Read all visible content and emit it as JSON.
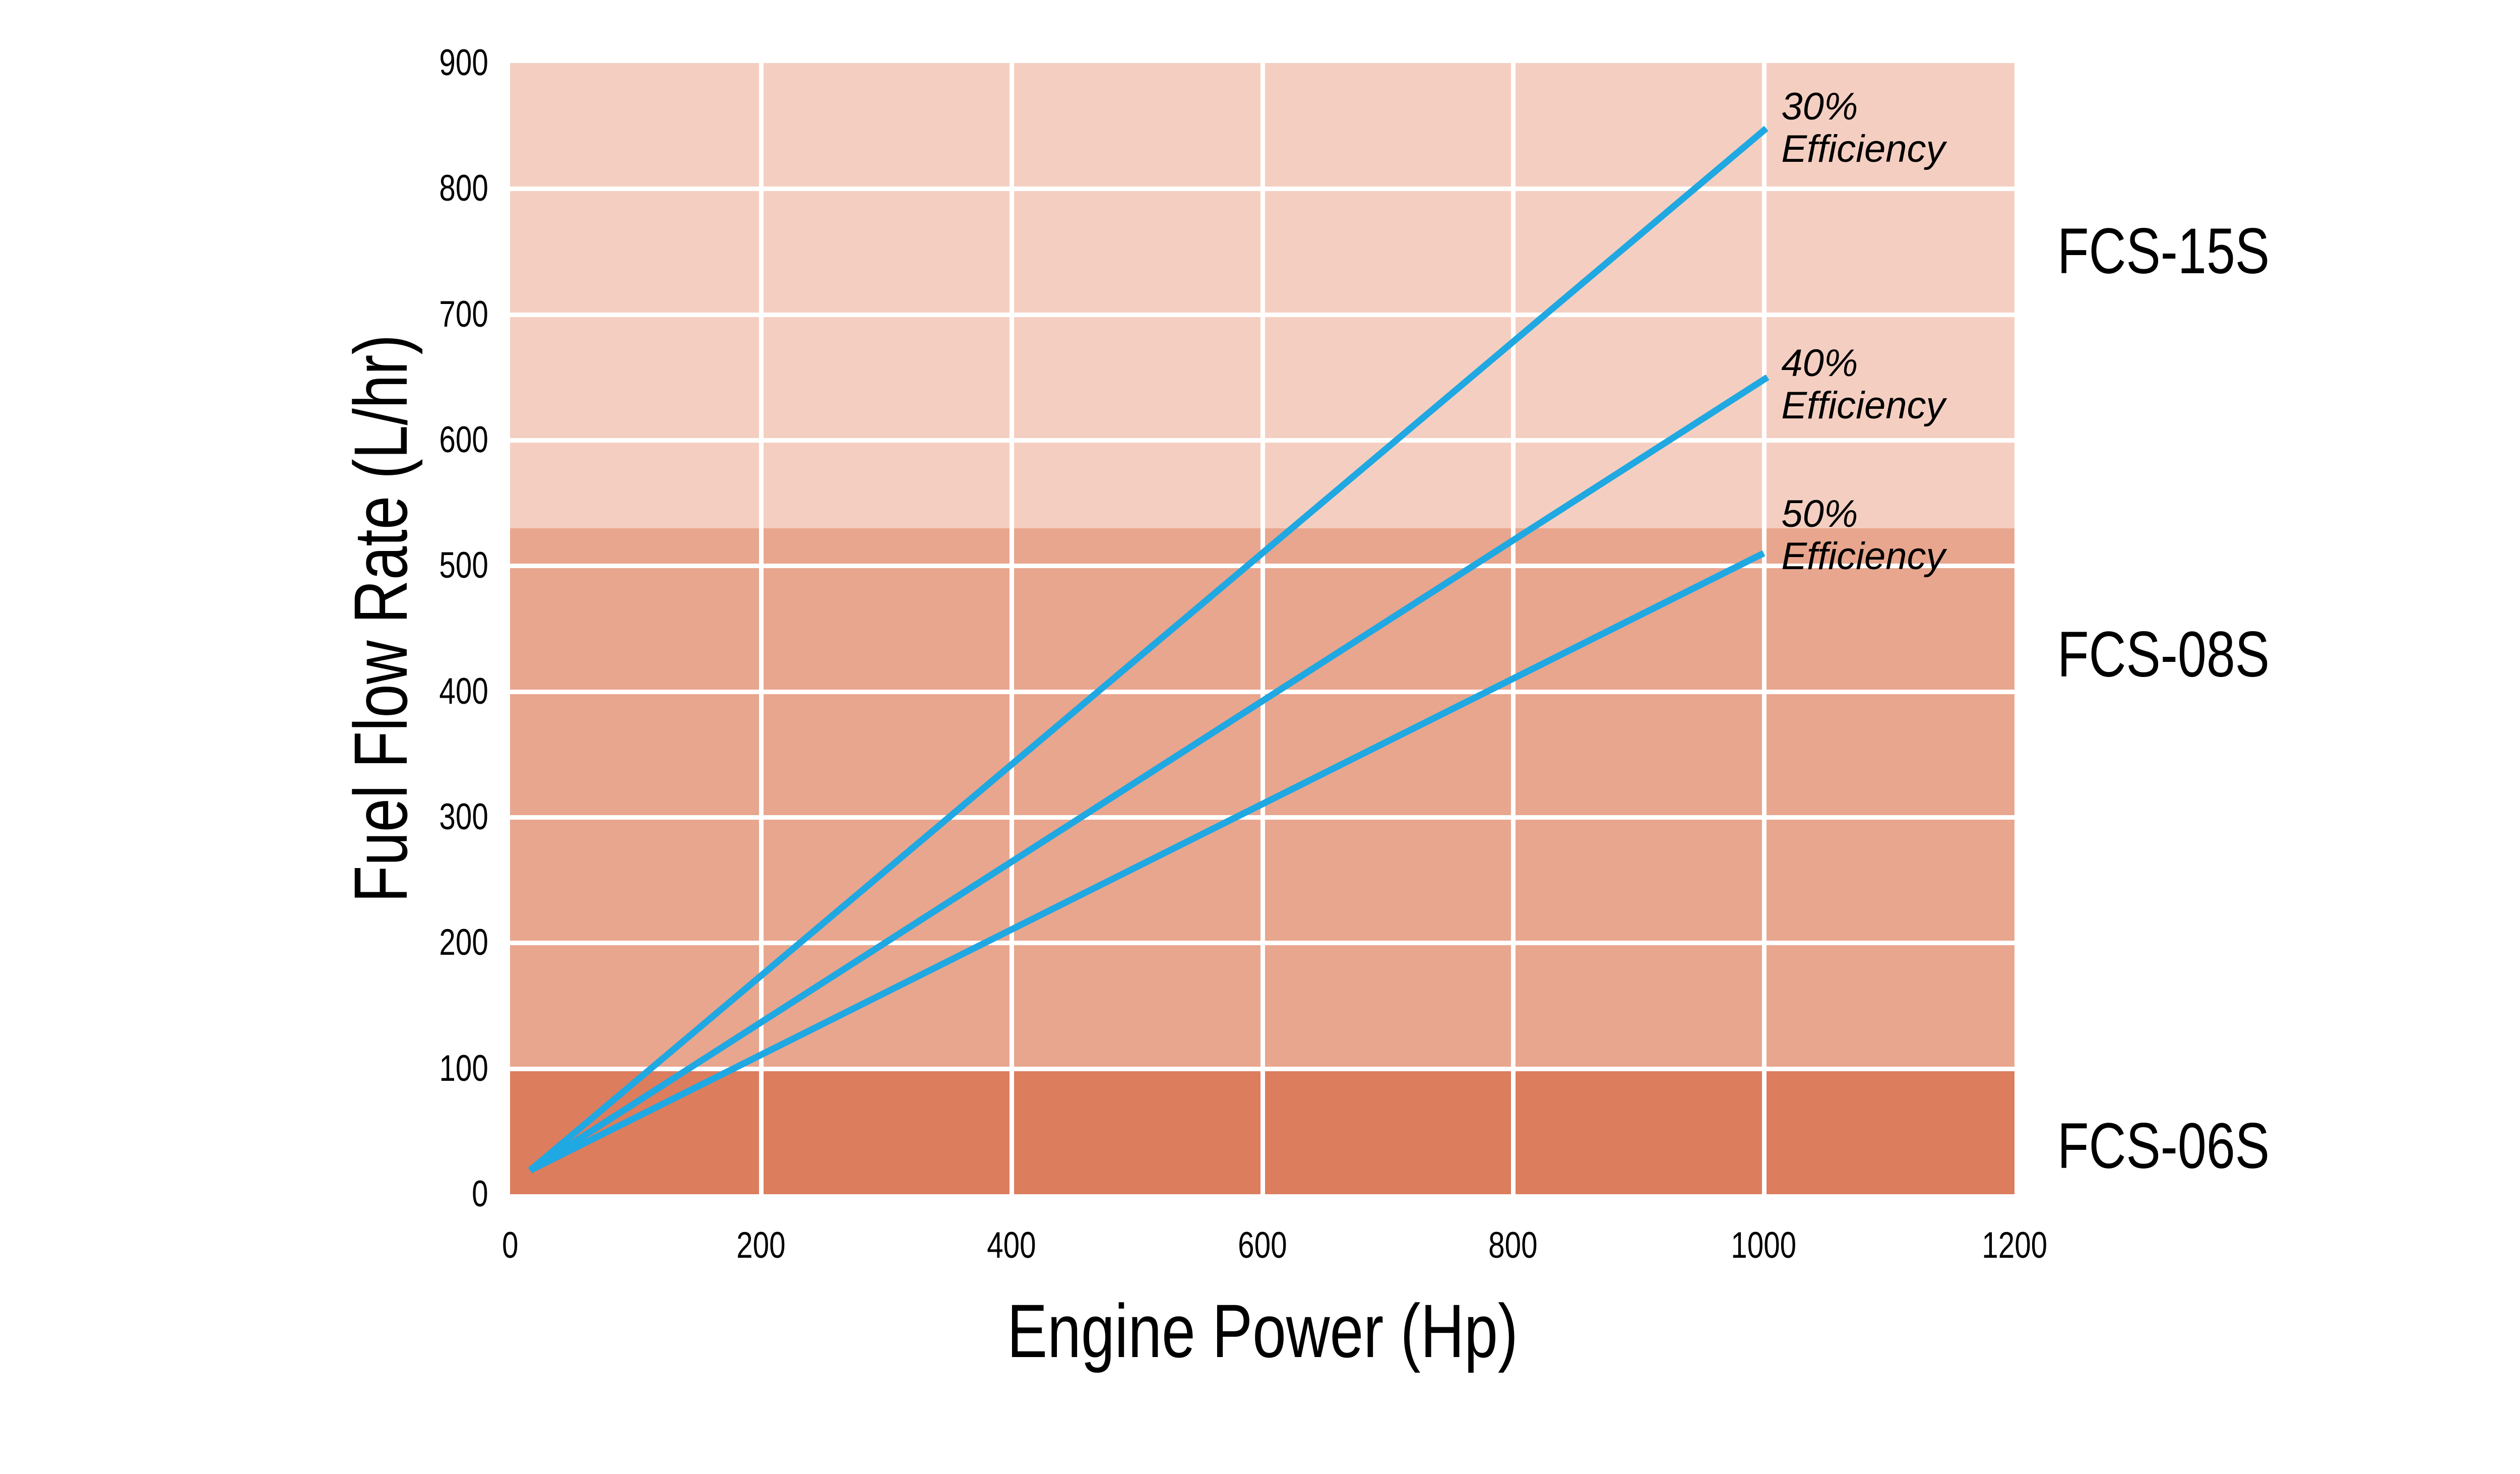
{
  "chart_data": {
    "type": "line",
    "title": "",
    "xlabel": "Engine Power (Hp)",
    "ylabel": "Fuel Flow Rate (L/hr)",
    "xlim": [
      0,
      1200
    ],
    "ylim": [
      0,
      900
    ],
    "x_ticks": [
      0,
      200,
      400,
      600,
      800,
      1000,
      1200
    ],
    "y_ticks": [
      0,
      100,
      200,
      300,
      400,
      500,
      600,
      700,
      800,
      900
    ],
    "x_gridlines": [
      200,
      400,
      600,
      800,
      1000
    ],
    "y_gridlines": [
      100,
      200,
      300,
      400,
      500,
      600,
      700,
      800
    ],
    "grid": true,
    "grid_color": "#FFFFFF",
    "line_color": "#1FA8E2",
    "text_color": "#000000",
    "series": [
      {
        "name": "30-percent-efficiency",
        "label": "30% Efficiency",
        "label_lines": [
          "30%",
          "Efficiency"
        ],
        "points": [
          [
            16,
            19
          ],
          [
            1002,
            848
          ]
        ],
        "label_anchor": [
          1014,
          882
        ]
      },
      {
        "name": "40-percent-efficiency",
        "label": "40% Efficiency",
        "label_lines": [
          "40%",
          "Efficiency"
        ],
        "points": [
          [
            16,
            19
          ],
          [
            1003,
            650
          ]
        ],
        "label_anchor": [
          1014,
          678
        ]
      },
      {
        "name": "50-percent-efficiency",
        "label": "50% Efficiency",
        "label_lines": [
          "50%",
          "Efficiency"
        ],
        "points": [
          [
            16,
            19
          ],
          [
            1000,
            510
          ]
        ],
        "label_anchor": [
          1014,
          558
        ]
      }
    ],
    "bands": [
      {
        "label": "FCS-15S",
        "y_min": 530,
        "y_max": 900,
        "color": "#F4CFC1",
        "label_y": 750
      },
      {
        "label": "FCS-08S",
        "y_min": 100,
        "y_max": 530,
        "color": "#E8A68E",
        "label_y": 429
      },
      {
        "label": "FCS-06S",
        "y_min": 0,
        "y_max": 100,
        "color": "#DC7D5E",
        "label_y": 38
      }
    ]
  }
}
